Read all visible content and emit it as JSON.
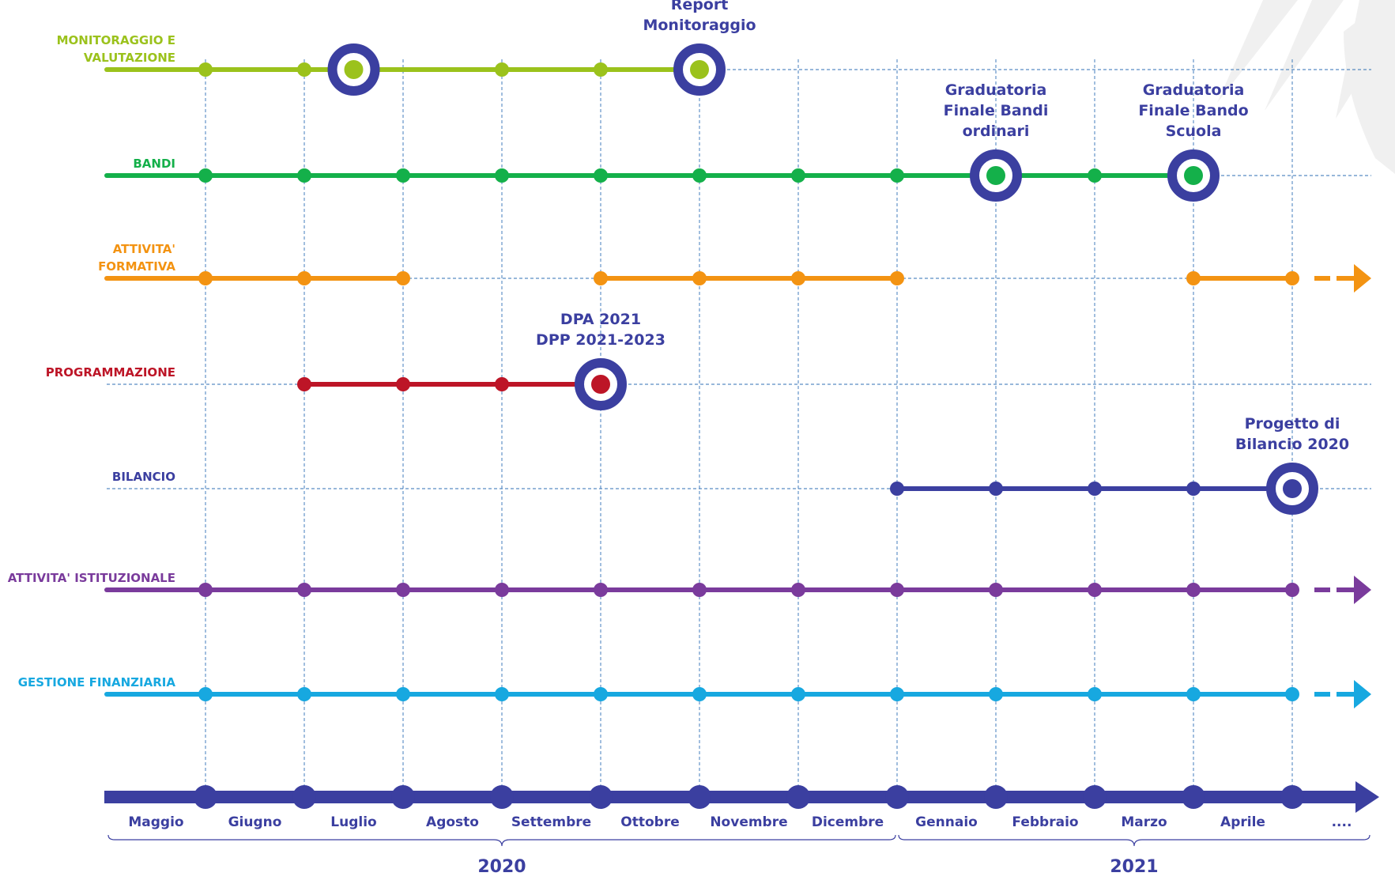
{
  "colors": {
    "monitoraggio": "#9bc21c",
    "bandi": "#14b04a",
    "formativa": "#f39312",
    "programmazione": "#bd1527",
    "bilancio": "#3b3fa0",
    "istituzionale": "#7a3b9c",
    "finanziaria": "#17a8e0",
    "axis": "#3b3fa0",
    "grid": "#2f6fb5",
    "milestone_ring": "#3b3fa0"
  },
  "rows": [
    {
      "key": "monitoraggio",
      "label_lines": [
        "MONITORAGGIO E",
        "VALUTAZIONE"
      ],
      "dots": [
        1,
        2,
        4,
        5,
        6
      ],
      "solid": [
        [
          0,
          6
        ]
      ],
      "dashed": [
        [
          6,
          12.8
        ]
      ],
      "arrow": false,
      "milestones": [
        {
          "at": 2.5,
          "label_lines": []
        },
        {
          "at": 6,
          "label_lines": [
            "Report",
            "Monitoraggio"
          ]
        }
      ]
    },
    {
      "key": "bandi",
      "label_lines": [
        "BANDI"
      ],
      "dots": [
        1,
        2,
        3,
        4,
        5,
        6,
        7,
        8,
        10
      ],
      "solid": [
        [
          0,
          11
        ]
      ],
      "dashed": [
        [
          11,
          12.8
        ]
      ],
      "arrow": false,
      "milestones": [
        {
          "at": 9,
          "label_lines": [
            "Graduatoria",
            "Finale Bandi",
            "ordinari"
          ]
        },
        {
          "at": 11,
          "label_lines": [
            "Graduatoria",
            "Finale Bando",
            "Scuola"
          ]
        }
      ]
    },
    {
      "key": "formativa",
      "label_lines": [
        "ATTIVITA'",
        "FORMATIVA"
      ],
      "dots": [
        1,
        2,
        3,
        5,
        6,
        7,
        8,
        11,
        12
      ],
      "solid": [
        [
          0,
          3
        ],
        [
          5,
          8
        ],
        [
          11,
          12
        ]
      ],
      "dashed": [
        [
          3,
          5
        ],
        [
          8,
          11
        ]
      ],
      "arrow": true,
      "milestones": []
    },
    {
      "key": "programmazione",
      "label_lines": [
        "PROGRAMMAZIONE"
      ],
      "dots": [
        2,
        3,
        4
      ],
      "solid": [
        [
          2,
          5
        ]
      ],
      "dashed": [
        [
          0,
          2
        ],
        [
          5,
          12.8
        ]
      ],
      "arrow": false,
      "milestones": [
        {
          "at": 5,
          "label_lines": [
            "DPA 2021",
            "DPP 2021-2023"
          ]
        }
      ]
    },
    {
      "key": "bilancio",
      "label_lines": [
        "BILANCIO"
      ],
      "dots": [
        8,
        9,
        10,
        11
      ],
      "solid": [
        [
          8,
          12
        ]
      ],
      "dashed": [
        [
          0,
          8
        ],
        [
          12,
          12.8
        ]
      ],
      "arrow": false,
      "milestones": [
        {
          "at": 12,
          "label_lines": [
            "Progetto di",
            "Bilancio 2020"
          ]
        }
      ]
    },
    {
      "key": "istituzionale",
      "label_lines": [
        "ATTIVITA' ISTITUZIONALE"
      ],
      "dots": [
        1,
        2,
        3,
        4,
        5,
        6,
        7,
        8,
        9,
        10,
        11,
        12
      ],
      "solid": [
        [
          0,
          12
        ]
      ],
      "dashed": [],
      "arrow": true,
      "milestones": []
    },
    {
      "key": "finanziaria",
      "label_lines": [
        "GESTIONE FINANZIARIA"
      ],
      "dots": [
        1,
        2,
        3,
        4,
        5,
        6,
        7,
        8,
        9,
        10,
        11,
        12
      ],
      "solid": [
        [
          0,
          12
        ]
      ],
      "dashed": [],
      "arrow": true,
      "milestones": []
    }
  ],
  "months": [
    "Maggio",
    "Giugno",
    "Luglio",
    "Agosto",
    "Settembre",
    "Ottobre",
    "Novembre",
    "Dicembre",
    "Gennaio",
    "Febbraio",
    "Marzo",
    "Aprile",
    "...."
  ],
  "years": [
    {
      "label": "2020",
      "from": 0,
      "to": 8
    },
    {
      "label": "2021",
      "from": 8,
      "to": 13
    }
  ]
}
